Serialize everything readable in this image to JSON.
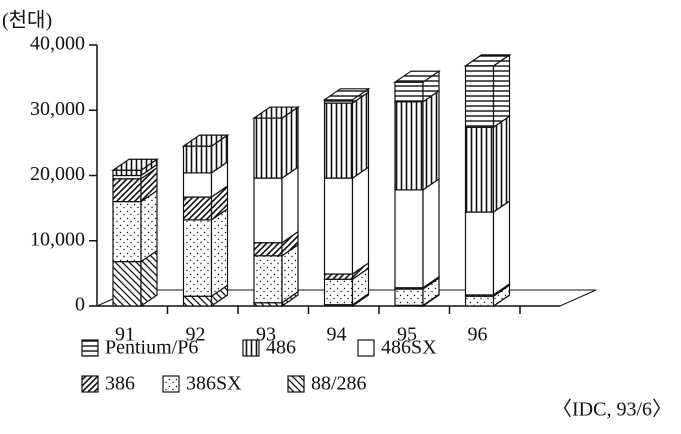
{
  "chart_data": {
    "type": "bar3d_stacked",
    "ylabel": "(천대)",
    "source": "〈IDC, 93/6〉",
    "categories": [
      "91",
      "92",
      "93",
      "94",
      "95",
      "96"
    ],
    "series": [
      {
        "name": "Pentium/P6",
        "values": [
          0,
          0,
          0,
          500,
          3000,
          9400
        ]
      },
      {
        "name": "486",
        "values": [
          800,
          4100,
          9200,
          11500,
          13500,
          13000
        ]
      },
      {
        "name": "486SX",
        "values": [
          500,
          3700,
          9900,
          14700,
          15000,
          12700
        ]
      },
      {
        "name": "386",
        "values": [
          3500,
          3500,
          2000,
          800,
          200,
          200
        ]
      },
      {
        "name": "386SX",
        "values": [
          9200,
          11700,
          7200,
          3900,
          2500,
          1500
        ]
      },
      {
        "name": "88/286",
        "values": [
          6800,
          1500,
          500,
          200,
          100,
          0
        ]
      }
    ],
    "ylim": [
      0,
      40000
    ],
    "yticks": [
      0,
      {
        "value": 10000,
        "label": "10,000"
      },
      {
        "value": 20000,
        "label": "20,000"
      },
      {
        "value": 30000,
        "label": "30,000"
      },
      {
        "value": 40000,
        "label": "40,000"
      }
    ]
  }
}
